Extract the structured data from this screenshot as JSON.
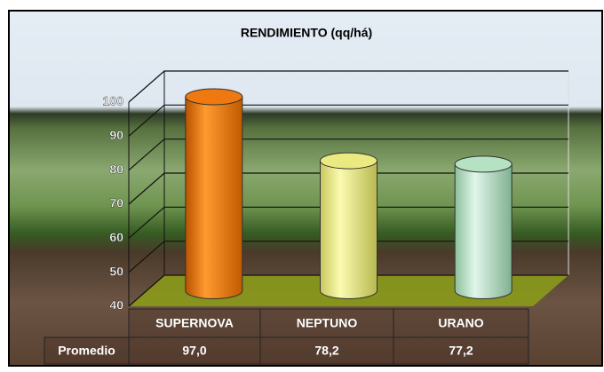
{
  "chart_data": {
    "type": "bar",
    "title": "RENDIMIENTO (qq/há)",
    "categories": [
      "SUPERNOVA",
      "NEPTUNO",
      "URANO"
    ],
    "values": [
      97.0,
      78.2,
      77.2
    ],
    "value_labels": [
      "97,0",
      "78,2",
      "77,2"
    ],
    "table_row_label": "Promedio",
    "colors": [
      "#f07810",
      "#eaea80",
      "#b6e2c4"
    ],
    "ylim": [
      40,
      100
    ],
    "yticks": [
      40,
      50,
      60,
      70,
      80,
      90,
      100
    ],
    "grid": true
  }
}
